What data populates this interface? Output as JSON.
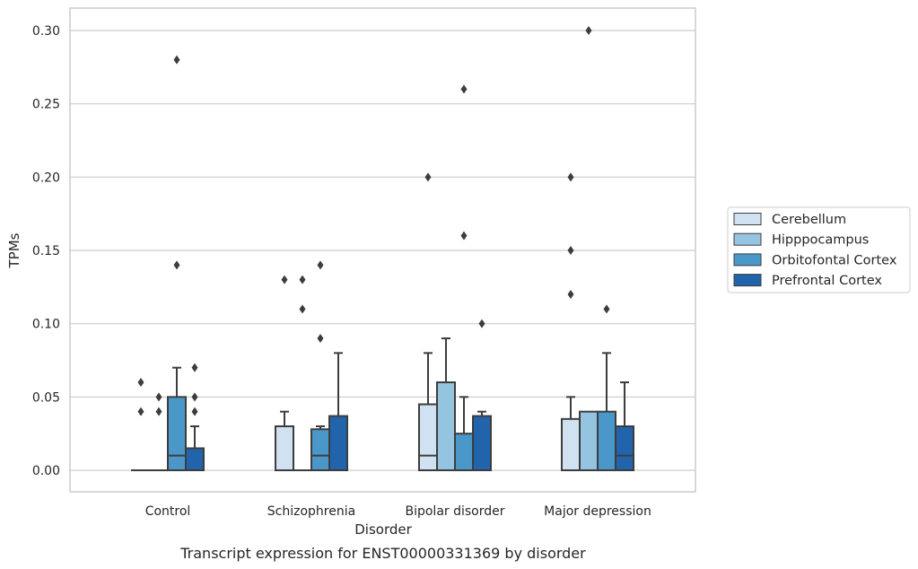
{
  "chart_data": {
    "type": "box",
    "caption": "Transcript expression for ENST00000331369 by disorder",
    "xlabel": "Disorder",
    "ylabel": "TPMs",
    "ylim": [
      -0.015,
      0.315
    ],
    "yticks": [
      "0.00",
      "0.05",
      "0.10",
      "0.15",
      "0.20",
      "0.25",
      "0.30"
    ],
    "ytick_values": [
      0,
      0.05,
      0.1,
      0.15,
      0.2,
      0.25,
      0.3
    ],
    "grid": "horizontal",
    "legend_position": "right",
    "categories": [
      "Control",
      "Schizophrenia",
      "Bipolar disorder",
      "Major depression"
    ],
    "series": [
      {
        "name": "Cerebellum",
        "color": "#d0e1f2",
        "boxes": [
          {
            "q1": 0,
            "median": 0,
            "q3": 0,
            "whisker_low": 0,
            "whisker_high": 0,
            "outliers": [
              0.04,
              0.06
            ]
          },
          {
            "q1": 0,
            "median": 0,
            "q3": 0.03,
            "whisker_low": 0,
            "whisker_high": 0.04,
            "outliers": [
              0.13
            ]
          },
          {
            "q1": 0,
            "median": 0.01,
            "q3": 0.045,
            "whisker_low": 0,
            "whisker_high": 0.08,
            "outliers": [
              0.2
            ]
          },
          {
            "q1": 0,
            "median": 0,
            "q3": 0.035,
            "whisker_low": 0,
            "whisker_high": 0.05,
            "outliers": [
              0.12,
              0.15,
              0.2
            ]
          }
        ]
      },
      {
        "name": "Hipppocampus",
        "color": "#94c4df",
        "boxes": [
          {
            "q1": 0,
            "median": 0,
            "q3": 0,
            "whisker_low": 0,
            "whisker_high": 0,
            "outliers": [
              0.04,
              0.05
            ]
          },
          {
            "q1": 0,
            "median": 0,
            "q3": 0,
            "whisker_low": 0,
            "whisker_high": 0,
            "outliers": [
              0.11,
              0.13
            ]
          },
          {
            "q1": 0,
            "median": 0,
            "q3": 0.06,
            "whisker_low": 0,
            "whisker_high": 0.09,
            "outliers": []
          },
          {
            "q1": 0,
            "median": 0,
            "q3": 0.04,
            "whisker_low": 0,
            "whisker_high": 0.04,
            "outliers": [
              0.3
            ]
          }
        ]
      },
      {
        "name": "Orbitofontal Cortex",
        "color": "#4a98c9",
        "boxes": [
          {
            "q1": 0,
            "median": 0.01,
            "q3": 0.05,
            "whisker_low": 0,
            "whisker_high": 0.07,
            "outliers": [
              0.14,
              0.28
            ]
          },
          {
            "q1": 0,
            "median": 0.01,
            "q3": 0.028,
            "whisker_low": 0,
            "whisker_high": 0.03,
            "outliers": [
              0.09,
              0.14
            ]
          },
          {
            "q1": 0,
            "median": 0,
            "q3": 0.025,
            "whisker_low": 0,
            "whisker_high": 0.05,
            "outliers": [
              0.16,
              0.26
            ]
          },
          {
            "q1": 0,
            "median": 0,
            "q3": 0.04,
            "whisker_low": 0,
            "whisker_high": 0.08,
            "outliers": [
              0.11
            ]
          }
        ]
      },
      {
        "name": "Prefrontal Cortex",
        "color": "#2164ab",
        "boxes": [
          {
            "q1": 0,
            "median": 0,
            "q3": 0.015,
            "whisker_low": 0,
            "whisker_high": 0.03,
            "outliers": [
              0.04,
              0.05,
              0.07
            ]
          },
          {
            "q1": 0,
            "median": 0,
            "q3": 0.037,
            "whisker_low": 0,
            "whisker_high": 0.08,
            "outliers": []
          },
          {
            "q1": 0,
            "median": 0,
            "q3": 0.037,
            "whisker_low": 0,
            "whisker_high": 0.04,
            "outliers": [
              0.1
            ]
          },
          {
            "q1": 0,
            "median": 0.01,
            "q3": 0.03,
            "whisker_low": 0,
            "whisker_high": 0.06,
            "outliers": []
          }
        ]
      }
    ]
  }
}
